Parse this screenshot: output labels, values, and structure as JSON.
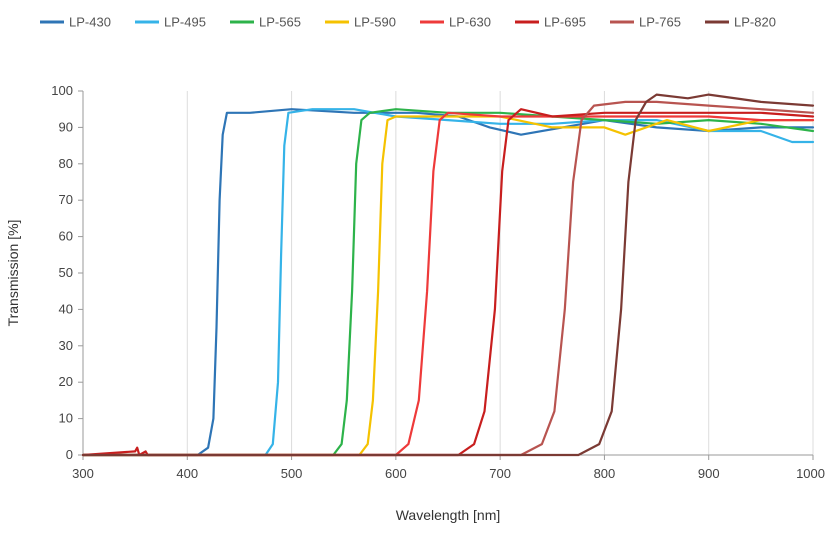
{
  "chart_data": {
    "type": "line",
    "title": "",
    "xlabel": "Wavelength [nm]",
    "ylabel": "Transmission [%]",
    "xlim": [
      300,
      1000
    ],
    "ylim": [
      0,
      100
    ],
    "x_ticks": [
      300,
      400,
      500,
      600,
      700,
      800,
      900,
      1000
    ],
    "y_ticks": [
      0,
      10,
      20,
      30,
      40,
      50,
      60,
      70,
      80,
      90,
      100
    ],
    "x_tick_labels": [
      "300",
      "400",
      "500",
      "600",
      "700",
      "800",
      "900",
      "1000"
    ],
    "y_tick_labels": [
      "0",
      "10",
      "20",
      "30",
      "40",
      "50",
      "60",
      "70",
      "80",
      "90",
      "100"
    ],
    "grid": "vertical",
    "legend_position": "top",
    "series": [
      {
        "name": "LP-430",
        "color": "#2e75b6",
        "points": [
          [
            300,
            0
          ],
          [
            410,
            0
          ],
          [
            420,
            2
          ],
          [
            425,
            10
          ],
          [
            428,
            35
          ],
          [
            431,
            70
          ],
          [
            434,
            88
          ],
          [
            438,
            94
          ],
          [
            460,
            94
          ],
          [
            500,
            95
          ],
          [
            560,
            94
          ],
          [
            620,
            94
          ],
          [
            660,
            93
          ],
          [
            690,
            90
          ],
          [
            720,
            88
          ],
          [
            760,
            90
          ],
          [
            800,
            92
          ],
          [
            850,
            90
          ],
          [
            900,
            89
          ],
          [
            950,
            90
          ],
          [
            1000,
            90
          ]
        ]
      },
      {
        "name": "LP-495",
        "color": "#35b3e8",
        "points": [
          [
            300,
            0
          ],
          [
            475,
            0
          ],
          [
            482,
            3
          ],
          [
            487,
            20
          ],
          [
            490,
            55
          ],
          [
            493,
            85
          ],
          [
            497,
            94
          ],
          [
            520,
            95
          ],
          [
            560,
            95
          ],
          [
            600,
            93
          ],
          [
            650,
            92
          ],
          [
            700,
            91
          ],
          [
            750,
            91
          ],
          [
            800,
            92
          ],
          [
            850,
            92
          ],
          [
            900,
            89
          ],
          [
            950,
            89
          ],
          [
            980,
            86
          ],
          [
            1000,
            86
          ]
        ]
      },
      {
        "name": "LP-565",
        "color": "#2db34a",
        "points": [
          [
            300,
            0
          ],
          [
            540,
            0
          ],
          [
            548,
            3
          ],
          [
            553,
            15
          ],
          [
            558,
            45
          ],
          [
            562,
            80
          ],
          [
            567,
            92
          ],
          [
            575,
            94
          ],
          [
            600,
            95
          ],
          [
            650,
            94
          ],
          [
            700,
            94
          ],
          [
            750,
            93
          ],
          [
            800,
            92
          ],
          [
            850,
            91
          ],
          [
            900,
            92
          ],
          [
            950,
            91
          ],
          [
            1000,
            89
          ]
        ]
      },
      {
        "name": "LP-590",
        "color": "#f5c200",
        "points": [
          [
            300,
            0
          ],
          [
            565,
            0
          ],
          [
            573,
            3
          ],
          [
            578,
            15
          ],
          [
            583,
            45
          ],
          [
            587,
            80
          ],
          [
            592,
            92
          ],
          [
            600,
            93
          ],
          [
            650,
            93
          ],
          [
            700,
            93
          ],
          [
            750,
            90
          ],
          [
            780,
            90
          ],
          [
            800,
            90
          ],
          [
            820,
            88
          ],
          [
            860,
            92
          ],
          [
            900,
            89
          ],
          [
            950,
            92
          ],
          [
            1000,
            92
          ]
        ]
      },
      {
        "name": "LP-630",
        "color": "#ee3a3a",
        "points": [
          [
            300,
            0
          ],
          [
            600,
            0
          ],
          [
            612,
            3
          ],
          [
            622,
            15
          ],
          [
            630,
            45
          ],
          [
            636,
            78
          ],
          [
            642,
            92
          ],
          [
            650,
            94
          ],
          [
            700,
            93
          ],
          [
            750,
            93
          ],
          [
            800,
            93
          ],
          [
            850,
            93
          ],
          [
            900,
            93
          ],
          [
            950,
            92
          ],
          [
            1000,
            92
          ]
        ]
      },
      {
        "name": "LP-695",
        "color": "#c81e1e",
        "points": [
          [
            300,
            0
          ],
          [
            350,
            1
          ],
          [
            352,
            2
          ],
          [
            354,
            0
          ],
          [
            360,
            1
          ],
          [
            362,
            0
          ],
          [
            660,
            0
          ],
          [
            675,
            3
          ],
          [
            685,
            12
          ],
          [
            695,
            40
          ],
          [
            702,
            78
          ],
          [
            708,
            92
          ],
          [
            720,
            95
          ],
          [
            750,
            93
          ],
          [
            800,
            94
          ],
          [
            850,
            94
          ],
          [
            900,
            94
          ],
          [
            950,
            94
          ],
          [
            1000,
            93
          ]
        ]
      },
      {
        "name": "LP-765",
        "color": "#b85450",
        "points": [
          [
            300,
            0
          ],
          [
            720,
            0
          ],
          [
            740,
            3
          ],
          [
            752,
            12
          ],
          [
            762,
            40
          ],
          [
            770,
            75
          ],
          [
            778,
            92
          ],
          [
            790,
            96
          ],
          [
            820,
            97
          ],
          [
            850,
            97
          ],
          [
            900,
            96
          ],
          [
            950,
            95
          ],
          [
            1000,
            94
          ]
        ]
      },
      {
        "name": "LP-820",
        "color": "#7b3a34",
        "points": [
          [
            300,
            0
          ],
          [
            775,
            0
          ],
          [
            795,
            3
          ],
          [
            807,
            12
          ],
          [
            816,
            40
          ],
          [
            823,
            75
          ],
          [
            830,
            92
          ],
          [
            840,
            97
          ],
          [
            850,
            99
          ],
          [
            880,
            98
          ],
          [
            900,
            99
          ],
          [
            950,
            97
          ],
          [
            1000,
            96
          ]
        ]
      }
    ]
  }
}
